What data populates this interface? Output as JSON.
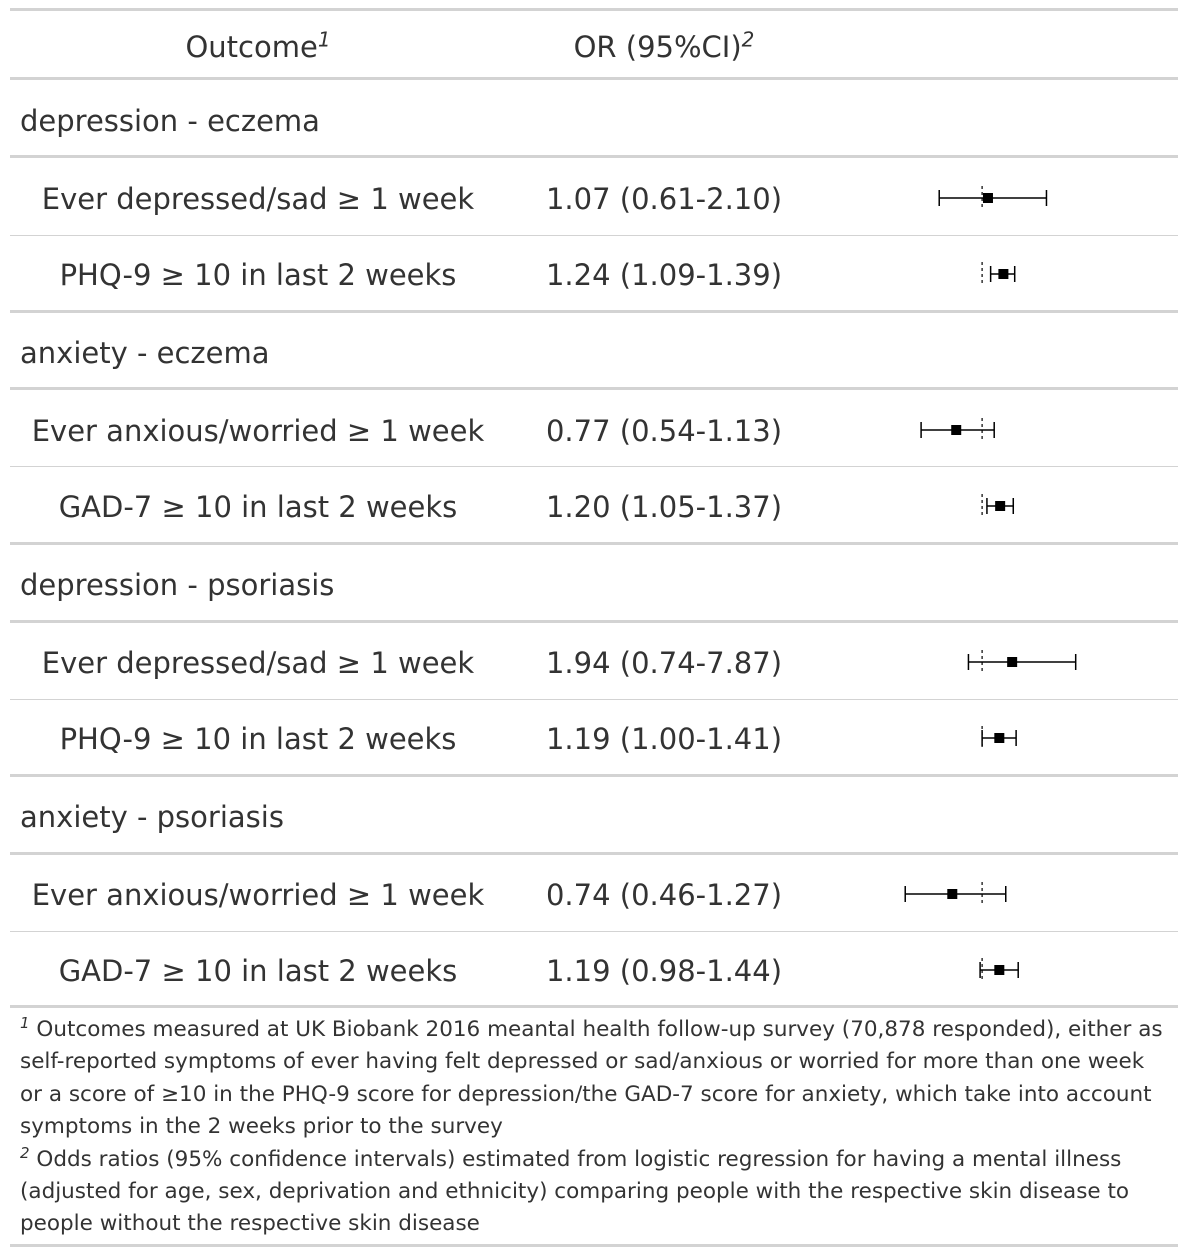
{
  "header": {
    "outcome_label": "Outcome",
    "outcome_note_marker": "1",
    "or_label": "OR (95%CI)",
    "or_note_marker": "2"
  },
  "groups": [
    {
      "label": "depression - eczema",
      "rows": [
        {
          "outcome": "Ever depressed/sad ≥ 1 week",
          "or_text": "1.07 (0.61-2.10)"
        },
        {
          "outcome": "PHQ-9 ≥ 10 in last 2 weeks",
          "or_text": "1.24 (1.09-1.39)"
        }
      ]
    },
    {
      "label": "anxiety - eczema",
      "rows": [
        {
          "outcome": "Ever anxious/worried ≥ 1 week",
          "or_text": "0.77 (0.54-1.13)"
        },
        {
          "outcome": "GAD-7 ≥ 10 in last 2 weeks",
          "or_text": "1.20 (1.05-1.37)"
        }
      ]
    },
    {
      "label": "depression - psoriasis",
      "rows": [
        {
          "outcome": "Ever depressed/sad ≥ 1 week",
          "or_text": "1.94 (0.74-7.87)"
        },
        {
          "outcome": "PHQ-9 ≥ 10 in last 2 weeks",
          "or_text": "1.19 (1.00-1.41)"
        }
      ]
    },
    {
      "label": "anxiety - psoriasis",
      "rows": [
        {
          "outcome": "Ever anxious/worried ≥ 1 week",
          "or_text": "0.74 (0.46-1.27)"
        },
        {
          "outcome": "GAD-7 ≥ 10 in last 2 weeks",
          "or_text": "1.19 (0.98-1.44)"
        }
      ]
    }
  ],
  "footnotes": [
    {
      "marker": "1",
      "text": "Outcomes measured at UK Biobank 2016 meantal health follow-up survey (70,878 responded), either as self-reported symptoms of ever having felt depressed or sad/anxious or worried for more than one week or a score of ≥10 in the PHQ-9 score for depression/the GAD-7 score for anxiety, which take into account symptoms in the 2 weeks prior to the survey"
    },
    {
      "marker": "2",
      "text": "Odds ratios (95% confidence intervals) estimated from logistic regression for having a mental illness (adjusted for age, sex, deprivation and ethnicity) comparing people with the respective skin disease to people without the respective skin disease"
    }
  ],
  "colors": {
    "text": "#333333",
    "rule": "#d3d3d3",
    "marks": "#000000"
  },
  "chart_data": {
    "type": "forest",
    "reference_line": 1,
    "series": [
      {
        "group": "depression - eczema",
        "outcome": "Ever depressed/sad ≥ 1 week",
        "estimate": 1.07,
        "lower": 0.61,
        "upper": 2.1
      },
      {
        "group": "depression - eczema",
        "outcome": "PHQ-9 ≥ 10 in last 2 weeks",
        "estimate": 1.24,
        "lower": 1.09,
        "upper": 1.39
      },
      {
        "group": "anxiety - eczema",
        "outcome": "Ever anxious/worried ≥ 1 week",
        "estimate": 0.77,
        "lower": 0.54,
        "upper": 1.13
      },
      {
        "group": "anxiety - eczema",
        "outcome": "GAD-7 ≥ 10 in last 2 weeks",
        "estimate": 1.2,
        "lower": 1.05,
        "upper": 1.37
      },
      {
        "group": "depression - psoriasis",
        "outcome": "Ever depressed/sad ≥ 1 week",
        "estimate": 1.94,
        "lower": 0.74,
        "upper": 7.87
      },
      {
        "group": "depression - psoriasis",
        "outcome": "PHQ-9 ≥ 10 in last 2 weeks",
        "estimate": 1.19,
        "lower": 1.0,
        "upper": 1.41
      },
      {
        "group": "anxiety - psoriasis",
        "outcome": "Ever anxious/worried ≥ 1 week",
        "estimate": 0.74,
        "lower": 0.46,
        "upper": 1.27
      },
      {
        "group": "anxiety - psoriasis",
        "outcome": "GAD-7 ≥ 10 in last 2 weeks",
        "estimate": 1.19,
        "lower": 0.98,
        "upper": 1.44
      }
    ]
  }
}
